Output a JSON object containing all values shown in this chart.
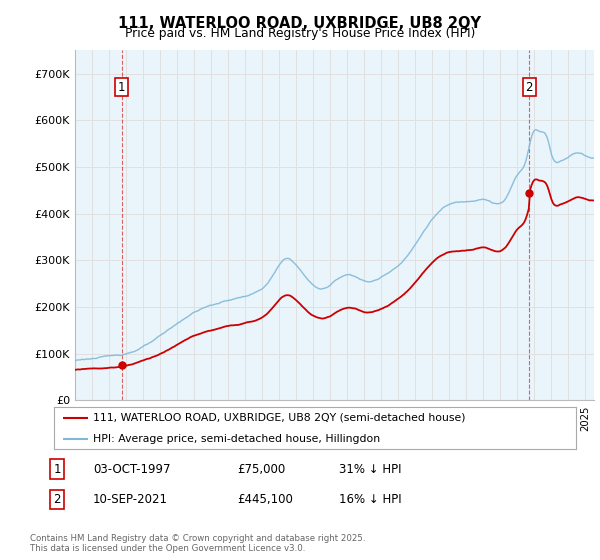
{
  "title_line1": "111, WATERLOO ROAD, UXBRIDGE, UB8 2QY",
  "title_line2": "Price paid vs. HM Land Registry's House Price Index (HPI)",
  "xlim_start": 1995.0,
  "xlim_end": 2025.5,
  "ylim_min": 0,
  "ylim_max": 750000,
  "yticks": [
    0,
    100000,
    200000,
    300000,
    400000,
    500000,
    600000,
    700000
  ],
  "ytick_labels": [
    "£0",
    "£100K",
    "£200K",
    "£300K",
    "£400K",
    "£500K",
    "£600K",
    "£700K"
  ],
  "hpi_color": "#7fb8d8",
  "price_color": "#cc0000",
  "sale1_x": 1997.75,
  "sale1_y": 75000,
  "sale2_x": 2021.69,
  "sale2_y": 445100,
  "legend_entry1": "111, WATERLOO ROAD, UXBRIDGE, UB8 2QY (semi-detached house)",
  "legend_entry2": "HPI: Average price, semi-detached house, Hillingdon",
  "table_row1": [
    "1",
    "03-OCT-1997",
    "£75,000",
    "31% ↓ HPI"
  ],
  "table_row2": [
    "2",
    "10-SEP-2021",
    "£445,100",
    "16% ↓ HPI"
  ],
  "footnote": "Contains HM Land Registry data © Crown copyright and database right 2025.\nThis data is licensed under the Open Government Licence v3.0.",
  "background_color": "#ffffff",
  "grid_color": "#e0e0e0",
  "chart_bg": "#eaf4fb"
}
